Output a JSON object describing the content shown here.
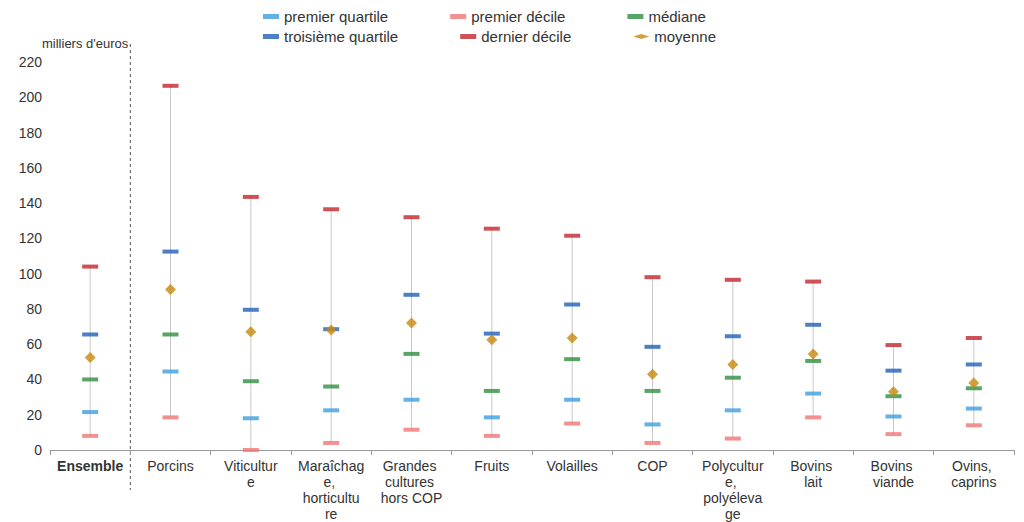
{
  "chart_data": {
    "type": "scatter",
    "y_label": "milliers d'euros",
    "categories": [
      "Ensemble",
      "Porcins",
      "Viticulture",
      "Maraîchage, horticulture",
      "Grandes cultures hors COP",
      "Fruits",
      "Volailles",
      "COP",
      "Polyculture, polyélevage",
      "Bovins lait",
      "Bovins viande",
      "Ovins, caprins"
    ],
    "series": [
      {
        "name": "premier quartile",
        "color": "#3d9ee0",
        "marker": "dash",
        "values": [
          21.5,
          44.5,
          18,
          22.5,
          28.5,
          18.5,
          28.5,
          14.5,
          22.5,
          32,
          19,
          23.5
        ]
      },
      {
        "name": "premier décile",
        "color": "#f07474",
        "marker": "dash",
        "values": [
          8,
          18.5,
          0,
          4,
          11.5,
          8,
          15,
          4,
          6.5,
          18.5,
          9,
          14
        ]
      },
      {
        "name": "médiane",
        "color": "#2f8f3f",
        "marker": "dash",
        "values": [
          40,
          65.5,
          39,
          36,
          54.5,
          33.5,
          51.5,
          33.5,
          41,
          50.5,
          30.5,
          35
        ]
      },
      {
        "name": "troisième quartile",
        "color": "#1f5fb8",
        "marker": "dash",
        "values": [
          65.5,
          112.5,
          79.5,
          68.5,
          88,
          66,
          82.5,
          58.5,
          64.5,
          71,
          45,
          48.5
        ]
      },
      {
        "name": "dernier décile",
        "color": "#c3262d",
        "marker": "dash",
        "values": [
          104,
          206.5,
          143.5,
          136.5,
          132,
          125.5,
          121.5,
          98,
          96.5,
          95.5,
          59.5,
          63.5
        ]
      },
      {
        "name": "moyenne",
        "color": "#c8880c",
        "marker": "diamond",
        "values": [
          52.5,
          91,
          67,
          68,
          72,
          62.5,
          63.5,
          43,
          48.5,
          54.5,
          33,
          38
        ]
      }
    ],
    "ylim": [
      0,
      220
    ],
    "yticks": [
      0,
      20,
      40,
      60,
      80,
      100,
      120,
      140,
      160,
      180,
      200,
      220
    ],
    "grid": false
  }
}
